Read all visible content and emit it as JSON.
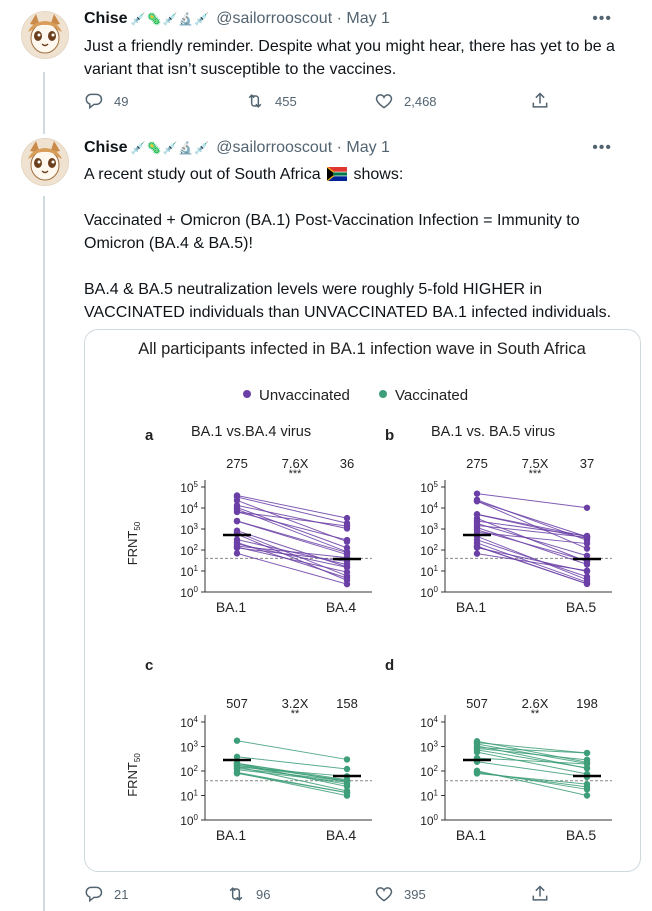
{
  "tweet1": {
    "name": "Chise",
    "name_emoji": "💉🦠💉🔬💉",
    "handle": "@sailorrooscout",
    "date": "May 1",
    "text": "Just a friendly reminder. Despite what you might hear, there has yet to be a variant that isn’t susceptible to the vaccines.",
    "replies": "49",
    "retweets": "455",
    "likes": "2,468"
  },
  "tweet2": {
    "name": "Chise",
    "name_emoji": "💉🦠💉🔬💉",
    "handle": "@sailorrooscout",
    "date": "May 1",
    "text_line1a": "A recent study out of South Africa",
    "text_line1b": "shows:",
    "text_p2": "Vaccinated + Omicron (BA.1) Post-Vaccination Infection = Immunity to Omicron (BA.4 & BA.5)!",
    "text_p3": "BA.4 & BA.5 neutralization levels were roughly 5-fold HIGHER in VACCINATED individuals than UNVACCINATED BA.1 infected individuals.",
    "replies": "21",
    "retweets": "96",
    "likes": "395"
  },
  "figure": {
    "title": "All participants infected in BA.1 infection wave in South Africa",
    "legend_unvaccinated": "Unvaccinated",
    "legend_vaccinated": "Vaccinated",
    "colors": {
      "unvaccinated": "#6a3fa6",
      "vaccinated": "#3e9e79",
      "median": "#000000"
    },
    "panels": [
      {
        "letter": "a",
        "subtitle": "BA.1 vs.BA.4 virus",
        "left_label": "BA.1",
        "right_label": "BA.4",
        "left_gmt": "275",
        "fold": "7.6X",
        "stars": "***",
        "right_gmt": "36",
        "ylabel": "FRNT50",
        "yticks": [
          "10^5",
          "10^4",
          "10^3",
          "10^2",
          "10^1",
          "10^0"
        ]
      },
      {
        "letter": "b",
        "subtitle": "BA.1 vs. BA.5 virus",
        "left_label": "BA.1",
        "right_label": "BA.5",
        "left_gmt": "275",
        "fold": "7.5X",
        "stars": "***",
        "right_gmt": "37",
        "ylabel": "",
        "yticks": [
          "10^5",
          "10^4",
          "10^3",
          "10^2",
          "10^1",
          "10^0"
        ]
      },
      {
        "letter": "c",
        "subtitle": "",
        "left_label": "BA.1",
        "right_label": "BA.4",
        "left_gmt": "507",
        "fold": "3.2X",
        "stars": "**",
        "right_gmt": "158",
        "ylabel": "FRNT50",
        "yticks": [
          "10^4",
          "10^3",
          "10^2",
          "10^1",
          "10^0"
        ]
      },
      {
        "letter": "d",
        "subtitle": "",
        "left_label": "BA.1",
        "right_label": "BA.5",
        "left_gmt": "507",
        "fold": "2.6X",
        "stars": "**",
        "right_gmt": "198",
        "ylabel": "",
        "yticks": [
          "10^4",
          "10^3",
          "10^2",
          "10^1",
          "10^0"
        ]
      }
    ]
  }
}
